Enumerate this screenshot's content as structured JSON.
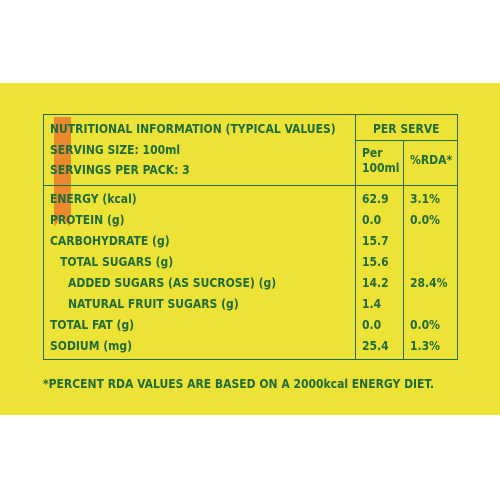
{
  "table": {
    "title": "NUTRITIONAL INFORMATION (TYPICAL VALUES)",
    "serving_size": "SERVING SIZE: 100ml",
    "servings_per_pack": "SERVINGS PER PACK: 3",
    "per_serve_header": "PER SERVE",
    "per_label_1": "Per",
    "per_label_2": "100ml",
    "rda_header": "%RDA*",
    "rows": [
      {
        "name": "ENERGY (kcal)",
        "value": "62.9",
        "rda": "3.1%"
      },
      {
        "name": "PROTEIN (g)",
        "value": "0.0",
        "rda": "0.0%"
      },
      {
        "name": "CARBOHYDRATE (g)",
        "value": "15.7",
        "rda": ""
      },
      {
        "name": "TOTAL SUGARS (g)",
        "value": "15.6",
        "rda": ""
      },
      {
        "name": "ADDED SUGARS (AS SUCROSE) (g)",
        "value": "14.2",
        "rda": "28.4%"
      },
      {
        "name": "NATURAL FRUIT SUGARS (g)",
        "value": "1.4",
        "rda": ""
      },
      {
        "name": "TOTAL FAT (g)",
        "value": "0.0",
        "rda": "0.0%"
      },
      {
        "name": "SODIUM (mg)",
        "value": "25.4",
        "rda": "1.3%"
      }
    ]
  },
  "footnote": "*PERCENT RDA VALUES ARE BASED ON A 2000kcal ENERGY DIET.",
  "colors": {
    "background": "#ede336",
    "text": "#1f6b3a",
    "accent": "#e98a2e"
  }
}
